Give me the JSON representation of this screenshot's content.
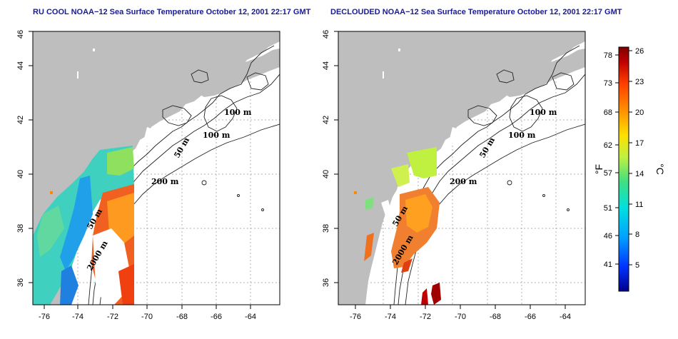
{
  "panels": [
    {
      "title": "RU COOL NOAA−12 Sea Surface Temperature October 12, 2001 22:17 GMT",
      "lon_ticks": [
        "-76",
        "-74",
        "-72",
        "-70",
        "-68",
        "-66",
        "-64"
      ],
      "lat_ticks": [
        "36",
        "38",
        "40",
        "42",
        "44",
        "46"
      ],
      "contour_labels": [
        "100 m",
        "100 m",
        "50 m",
        "200 m",
        "50 m",
        "2000 m"
      ]
    },
    {
      "title": "DECLOUDED NOAA−12 Sea Surface Temperature October 12, 2001 22:17 GMT",
      "lon_ticks": [
        "-76",
        "-74",
        "-72",
        "-70",
        "-68",
        "-66",
        "-64"
      ],
      "lat_ticks": [
        "36",
        "38",
        "40",
        "42",
        "44",
        "46"
      ],
      "contour_labels": [
        "100 m",
        "100 m",
        "50 m",
        "200 m",
        "50 m",
        "2000 m"
      ]
    }
  ],
  "colorbar": {
    "fahrenheit_ticks": [
      "78",
      "73",
      "68",
      "62",
      "57",
      "51",
      "46",
      "41"
    ],
    "celsius_ticks": [
      "26",
      "23",
      "20",
      "17",
      "14",
      "11",
      "8",
      "5"
    ],
    "fahrenheit_label": "°F",
    "celsius_label": "°C",
    "colors": [
      "#00008c",
      "#0033ff",
      "#00a0ff",
      "#00e0e0",
      "#40e080",
      "#c0f040",
      "#ffe000",
      "#ff9000",
      "#ff4000",
      "#c00000",
      "#800000"
    ]
  },
  "colors": {
    "land": "#bebebe",
    "title": "#1a1a9c",
    "grid": "#b0b0b0"
  }
}
